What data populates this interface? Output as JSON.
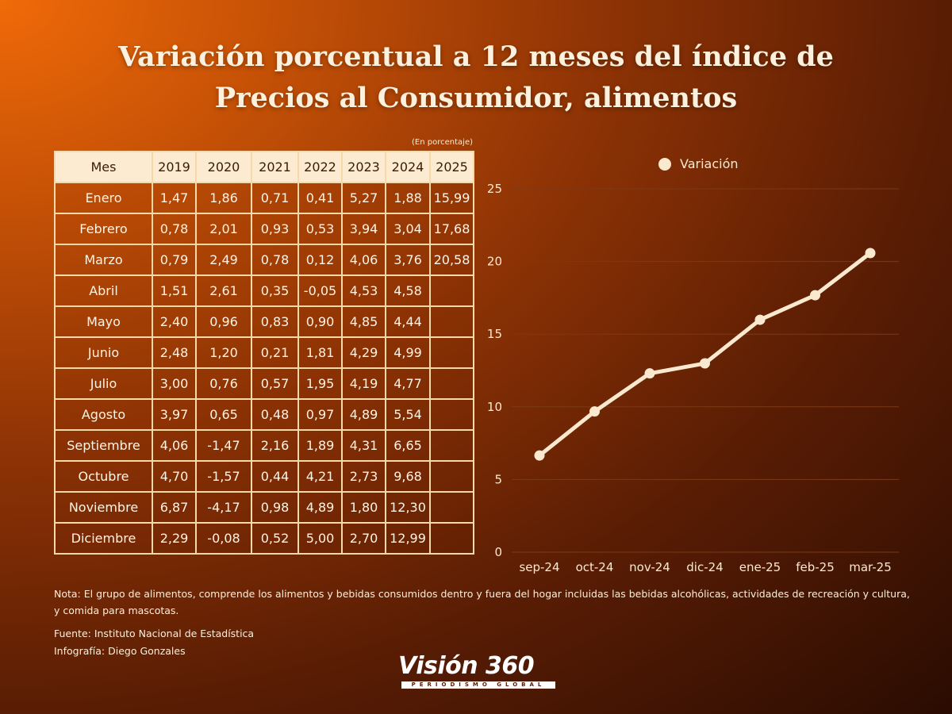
{
  "title_line1": "Variación porcentual a 12 meses del índice de",
  "title_line2": "Precios al Consumidor, alimentos",
  "unit_note": "(En porcentaje)",
  "table": {
    "header": [
      "Mes",
      "2019",
      "2020",
      "2021",
      "2022",
      "2023",
      "2024",
      "2025"
    ],
    "rows": [
      [
        "Enero",
        "1,47",
        "1,86",
        "0,71",
        "0,41",
        "5,27",
        "1,88",
        "15,99"
      ],
      [
        "Febrero",
        "0,78",
        "2,01",
        "0,93",
        "0,53",
        "3,94",
        "3,04",
        "17,68"
      ],
      [
        "Marzo",
        "0,79",
        "2,49",
        "0,78",
        "0,12",
        "4,06",
        "3,76",
        "20,58"
      ],
      [
        "Abril",
        "1,51",
        "2,61",
        "0,35",
        "-0,05",
        "4,53",
        "4,58",
        ""
      ],
      [
        "Mayo",
        "2,40",
        "0,96",
        "0,83",
        "0,90",
        "4,85",
        "4,44",
        ""
      ],
      [
        "Junio",
        "2,48",
        "1,20",
        "0,21",
        "1,81",
        "4,29",
        "4,99",
        ""
      ],
      [
        "Julio",
        "3,00",
        "0,76",
        "0,57",
        "1,95",
        "4,19",
        "4,77",
        ""
      ],
      [
        "Agosto",
        "3,97",
        "0,65",
        "0,48",
        "0,97",
        "4,89",
        "5,54",
        ""
      ],
      [
        "Septiembre",
        "4,06",
        "-1,47",
        "2,16",
        "1,89",
        "4,31",
        "6,65",
        ""
      ],
      [
        "Octubre",
        "4,70",
        "-1,57",
        "0,44",
        "4,21",
        "2,73",
        "9,68",
        ""
      ],
      [
        "Noviembre",
        "6,87",
        "-4,17",
        "0,98",
        "4,89",
        "1,80",
        "12,30",
        ""
      ],
      [
        "Diciembre",
        "2,29",
        "-0,08",
        "0,52",
        "5,00",
        "2,70",
        "12,99",
        ""
      ]
    ]
  },
  "chart_data": {
    "type": "line",
    "categories": [
      "sep-24",
      "oct-24",
      "nov-24",
      "dic-24",
      "ene-25",
      "feb-25",
      "mar-25"
    ],
    "series": [
      {
        "name": "Variación",
        "values": [
          6.65,
          9.68,
          12.3,
          12.99,
          15.99,
          17.68,
          20.58
        ]
      }
    ],
    "yticks": [
      0,
      5,
      10,
      15,
      20,
      25
    ],
    "ylim": [
      0,
      25
    ],
    "grid": true,
    "legend": "top",
    "line_color": "#fbe9cf",
    "grid_color": "#7a3a16"
  },
  "note": "Nota: El grupo de alimentos, comprende los alimentos y bebidas consumidos dentro y fuera del hogar incluidas las bebidas alcohólicas, actividades de recreación y cultura, y comida para mascotas.",
  "source": "Fuente: Instituto Nacional de Estadística",
  "infographic": "Infografía: Diego Gonzales",
  "logo": {
    "word": "Visión 360",
    "tagline": "PERIODISMO GLOBAL"
  }
}
